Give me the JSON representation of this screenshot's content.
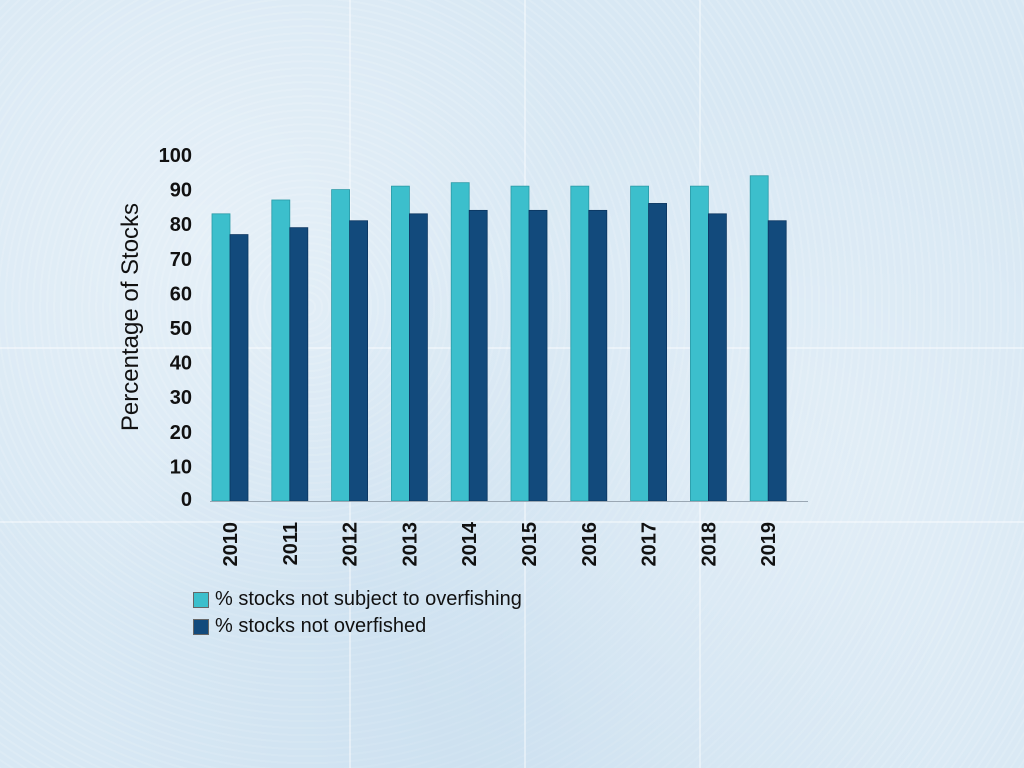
{
  "chart_data": {
    "type": "bar",
    "title": "",
    "xlabel": "",
    "ylabel": "Percentage of Stocks",
    "ylim": [
      0,
      100
    ],
    "yticks": [
      "0",
      "10",
      "20",
      "30",
      "40",
      "50",
      "60",
      "70",
      "80",
      "90",
      "100"
    ],
    "categories": [
      "2010",
      "2011",
      "2012",
      "2013",
      "2014",
      "2015",
      "2016",
      "2017",
      "2018",
      "2019"
    ],
    "grid": false,
    "legend_position": "bottom-left",
    "series": [
      {
        "name": "% stocks not subject to overfishing",
        "color": "#3cbfcc",
        "values": [
          83,
          87,
          90,
          91,
          92,
          91,
          91,
          91,
          91,
          94
        ]
      },
      {
        "name": "% stocks not overfished",
        "color": "#124a7c",
        "values": [
          77,
          79,
          81,
          83,
          84,
          84,
          84,
          86,
          83,
          81
        ]
      }
    ]
  }
}
